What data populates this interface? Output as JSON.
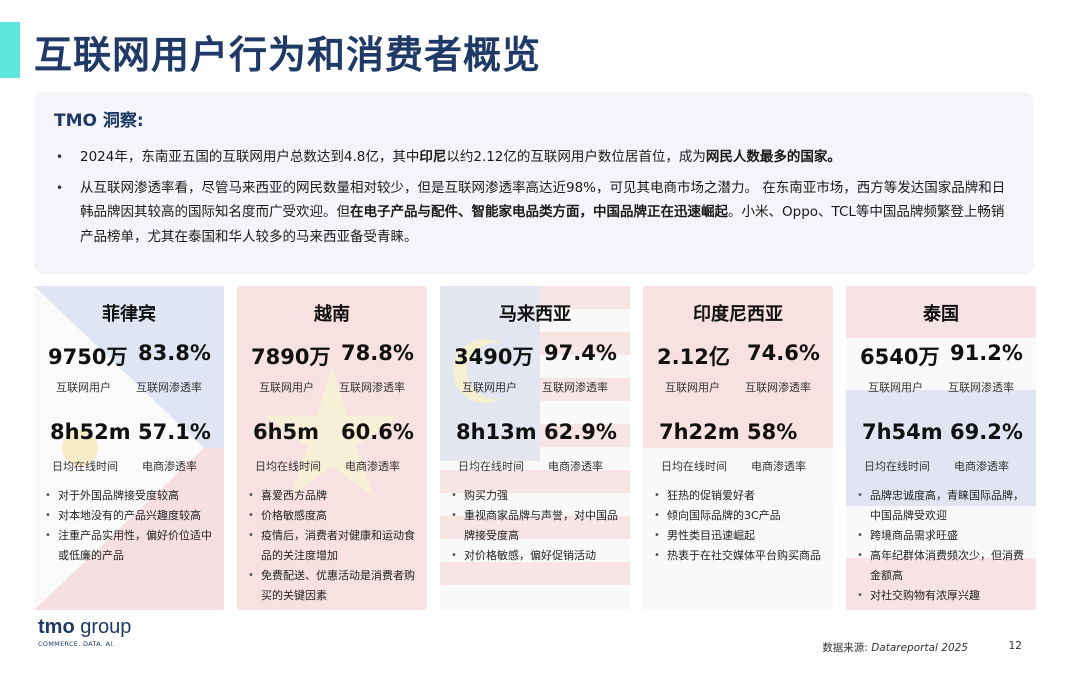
{
  "header": {
    "title": "互联网用户行为和消费者概览"
  },
  "insight": {
    "title": "TMO 洞察:",
    "p1": [
      {
        "t": "2024年，东南亚五国的互联网用户总数达到4.8亿，其中"
      },
      {
        "t": "印尼",
        "b": true
      },
      {
        "t": "以约2.12亿的互联网用户数位居首位，成为"
      },
      {
        "t": "网民人数最多的国家。",
        "b": true
      }
    ],
    "p2": [
      {
        "t": "从互联网渗透率看，尽管马来西亚的网民数量相对较少，但是互联网渗透率高达近98%，可见其电商市场之潜力。 在东南亚市场，西方等发达国家品牌和日韩品牌因其较高的国际知名度而广受欢迎。但"
      },
      {
        "t": "在电子产品与配件、智能家电品类方面，中国品牌正在迅速崛起",
        "b": true
      },
      {
        "t": "。小米、Oppo、TCL等中国品牌频繁登上畅销产品榜单，尤其在泰国和华人较多的马来西亚备受青睐。"
      }
    ]
  },
  "cards": [
    {
      "country": "菲律宾",
      "users": "9750万",
      "pen": "83.8%",
      "users_label": "互联网用户",
      "pen_label": "互联网渗透率",
      "time": "8h52m",
      "ecom": "57.1%",
      "time_label": "日均在线时间",
      "ecom_label": "电商渗透率",
      "bullets": [
        "对于外国品牌接受度较高",
        "对本地没有的产品兴趣度较高",
        "注重产品实用性，偏好价位适中或低廉的产品"
      ],
      "flag": "philippines"
    },
    {
      "country": "越南",
      "users": "7890万",
      "pen": "78.8%",
      "users_label": "互联网用户",
      "pen_label": "互联网渗透率",
      "time": "6h5m",
      "ecom": "60.6%",
      "time_label": "日均在线时间",
      "ecom_label": "电商渗透率",
      "bullets": [
        "喜爱西方品牌",
        "价格敏感度高",
        "疫情后，消费者对健康和运动食品的关注度增加",
        "免费配送、优惠活动是消费者购买的关键因素"
      ],
      "flag": "vietnam"
    },
    {
      "country": "马来西亚",
      "users": "3490万",
      "pen": "97.4%",
      "users_label": "互联网用户",
      "pen_label": "互联网渗透率",
      "time": "8h13m",
      "ecom": "62.9%",
      "time_label": "日均在线时间",
      "ecom_label": "电商渗透率",
      "bullets": [
        "购买力强",
        "重视商家品牌与声誉，对中国品牌接受度高",
        "对价格敏感，偏好促销活动"
      ],
      "flag": "malaysia"
    },
    {
      "country": "印度尼西亚",
      "users": "2.12亿",
      "pen": "74.6%",
      "users_label": "互联网用户",
      "pen_label": "互联网渗透率",
      "time": "7h22m",
      "ecom": "58%",
      "time_label": "日均在线时间",
      "ecom_label": "电商渗透率",
      "bullets": [
        "狂热的促销爱好者",
        "倾向国际品牌的3C产品",
        "男性类目迅速崛起",
        "热衷于在社交媒体平台购买商品"
      ],
      "flag": "indonesia"
    },
    {
      "country": "泰国",
      "users": "6540万",
      "pen": "91.2%",
      "users_label": "互联网用户",
      "pen_label": "互联网渗透率",
      "time": "7h54m",
      "ecom": "69.2%",
      "time_label": "日均在线时间",
      "ecom_label": "电商渗透率",
      "bullets": [
        "品牌忠诚度高，青睐国际品牌，中国品牌受欢迎",
        "跨境商品需求旺盛",
        "高年纪群体消费频次少，但消费金额高",
        "对社交购物有浓厚兴趣"
      ],
      "flag": "thailand"
    }
  ],
  "footer": {
    "logo_main": "tmo",
    "logo_group": "group",
    "logo_sub": "COMMERCE. DATA. AI.",
    "source_prefix": "数据来源: ",
    "source_name": "Datareportal 2025",
    "page": "12"
  }
}
